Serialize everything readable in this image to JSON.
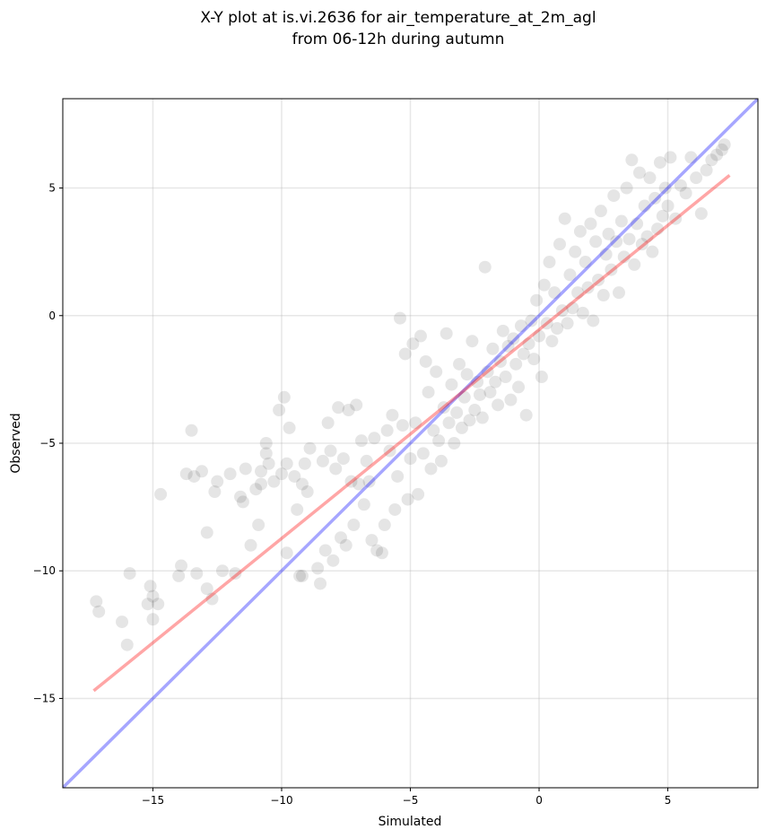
{
  "chart_data": {
    "type": "scatter",
    "title_line1": "X-Y plot at is.vi.2636 for air_temperature_at_2m_agl",
    "title_line2": "from 06-12h during autumn",
    "xlabel": "Simulated",
    "ylabel": "Observed",
    "xlim": [
      -18.5,
      8.5
    ],
    "ylim": [
      -18.5,
      8.5
    ],
    "xticks": [
      -15,
      -10,
      -5,
      0,
      5
    ],
    "yticks": [
      -15,
      -10,
      -5,
      0,
      5
    ],
    "xtick_labels": [
      "−15",
      "−10",
      "−5",
      "0",
      "5"
    ],
    "ytick_labels": [
      "−15",
      "−10",
      "−5",
      "0",
      "5"
    ],
    "grid": true,
    "point_color": "#000000",
    "identity_line": {
      "color": "#0000ff",
      "x": [
        -18.5,
        8.5
      ],
      "y": [
        -18.5,
        8.5
      ]
    },
    "fit_line": {
      "color": "#ff0000",
      "x": [
        -17.3,
        7.4
      ],
      "y": [
        -14.7,
        5.5
      ]
    },
    "points": [
      [
        -17.2,
        -11.2
      ],
      [
        -17.1,
        -11.6
      ],
      [
        -16.2,
        -12.0
      ],
      [
        -16.0,
        -12.9
      ],
      [
        -15.9,
        -10.1
      ],
      [
        -15.2,
        -11.3
      ],
      [
        -15.1,
        -10.6
      ],
      [
        -15.0,
        -11.0
      ],
      [
        -15.0,
        -11.9
      ],
      [
        -14.8,
        -11.3
      ],
      [
        -14.7,
        -7.0
      ],
      [
        -14.0,
        -10.2
      ],
      [
        -13.9,
        -9.8
      ],
      [
        -13.7,
        -6.2
      ],
      [
        -13.5,
        -4.5
      ],
      [
        -13.4,
        -6.3
      ],
      [
        -13.3,
        -10.1
      ],
      [
        -13.1,
        -6.1
      ],
      [
        -12.9,
        -8.5
      ],
      [
        -12.9,
        -10.7
      ],
      [
        -12.7,
        -11.1
      ],
      [
        -12.6,
        -6.9
      ],
      [
        -12.5,
        -6.5
      ],
      [
        -12.3,
        -10.0
      ],
      [
        -12.0,
        -6.2
      ],
      [
        -11.8,
        -10.1
      ],
      [
        -11.6,
        -7.1
      ],
      [
        -11.5,
        -7.3
      ],
      [
        -11.4,
        -6.0
      ],
      [
        -11.2,
        -9.0
      ],
      [
        -11.0,
        -6.8
      ],
      [
        -10.9,
        -8.2
      ],
      [
        -10.8,
        -6.1
      ],
      [
        -10.8,
        -6.6
      ],
      [
        -10.6,
        -5.0
      ],
      [
        -10.6,
        -5.4
      ],
      [
        -10.5,
        -5.8
      ],
      [
        -10.3,
        -6.5
      ],
      [
        -10.1,
        -3.7
      ],
      [
        -10.0,
        -6.2
      ],
      [
        -9.9,
        -3.2
      ],
      [
        -9.8,
        -5.8
      ],
      [
        -9.8,
        -9.3
      ],
      [
        -9.7,
        -4.4
      ],
      [
        -9.5,
        -6.3
      ],
      [
        -9.4,
        -7.6
      ],
      [
        -9.3,
        -10.2
      ],
      [
        -9.2,
        -10.2
      ],
      [
        -9.2,
        -6.6
      ],
      [
        -9.1,
        -5.8
      ],
      [
        -9.0,
        -6.9
      ],
      [
        -8.9,
        -5.2
      ],
      [
        -8.6,
        -9.9
      ],
      [
        -8.5,
        -10.5
      ],
      [
        -8.4,
        -5.7
      ],
      [
        -8.3,
        -9.2
      ],
      [
        -8.2,
        -4.2
      ],
      [
        -8.1,
        -5.3
      ],
      [
        -8.0,
        -9.6
      ],
      [
        -7.9,
        -6.0
      ],
      [
        -7.8,
        -3.6
      ],
      [
        -7.7,
        -8.7
      ],
      [
        -7.6,
        -5.6
      ],
      [
        -7.5,
        -9.0
      ],
      [
        -7.4,
        -3.7
      ],
      [
        -7.3,
        -6.5
      ],
      [
        -7.2,
        -8.2
      ],
      [
        -7.1,
        -3.5
      ],
      [
        -7.0,
        -6.6
      ],
      [
        -6.9,
        -4.9
      ],
      [
        -6.8,
        -7.4
      ],
      [
        -6.7,
        -5.7
      ],
      [
        -6.6,
        -6.5
      ],
      [
        -6.5,
        -8.8
      ],
      [
        -6.4,
        -4.8
      ],
      [
        -6.3,
        -9.2
      ],
      [
        -6.1,
        -9.3
      ],
      [
        -6.0,
        -8.2
      ],
      [
        -5.9,
        -4.5
      ],
      [
        -5.8,
        -5.3
      ],
      [
        -5.7,
        -3.9
      ],
      [
        -5.6,
        -7.6
      ],
      [
        -5.5,
        -6.3
      ],
      [
        -5.4,
        -0.1
      ],
      [
        -5.3,
        -4.3
      ],
      [
        -5.2,
        -1.5
      ],
      [
        -5.1,
        -7.2
      ],
      [
        -5.0,
        -5.6
      ],
      [
        -4.9,
        -1.1
      ],
      [
        -4.8,
        -4.2
      ],
      [
        -4.7,
        -7.0
      ],
      [
        -4.6,
        -0.8
      ],
      [
        -4.5,
        -5.4
      ],
      [
        -4.4,
        -1.8
      ],
      [
        -4.3,
        -3.0
      ],
      [
        -4.2,
        -6.0
      ],
      [
        -4.1,
        -4.5
      ],
      [
        -4.0,
        -2.2
      ],
      [
        -3.9,
        -4.9
      ],
      [
        -3.8,
        -5.7
      ],
      [
        -3.7,
        -3.6
      ],
      [
        -3.6,
        -0.7
      ],
      [
        -3.5,
        -4.2
      ],
      [
        -3.4,
        -2.7
      ],
      [
        -3.3,
        -5.0
      ],
      [
        -3.2,
        -3.8
      ],
      [
        -3.1,
        -1.9
      ],
      [
        -3.0,
        -4.4
      ],
      [
        -2.9,
        -3.2
      ],
      [
        -2.8,
        -2.3
      ],
      [
        -2.7,
        -4.1
      ],
      [
        -2.6,
        -1.0
      ],
      [
        -2.5,
        -3.7
      ],
      [
        -2.4,
        -2.6
      ],
      [
        -2.3,
        -3.1
      ],
      [
        -2.2,
        -4.0
      ],
      [
        -2.1,
        1.9
      ],
      [
        -2.0,
        -2.2
      ],
      [
        -1.9,
        -3.0
      ],
      [
        -1.8,
        -1.3
      ],
      [
        -1.7,
        -2.6
      ],
      [
        -1.6,
        -3.5
      ],
      [
        -1.5,
        -1.8
      ],
      [
        -1.4,
        -0.6
      ],
      [
        -1.3,
        -2.4
      ],
      [
        -1.2,
        -1.2
      ],
      [
        -1.1,
        -3.3
      ],
      [
        -1.0,
        -0.9
      ],
      [
        -0.9,
        -1.9
      ],
      [
        -0.8,
        -2.8
      ],
      [
        -0.7,
        -0.4
      ],
      [
        -0.6,
        -1.5
      ],
      [
        -0.5,
        -3.9
      ],
      [
        -0.4,
        -1.1
      ],
      [
        -0.3,
        -0.2
      ],
      [
        -0.2,
        -1.7
      ],
      [
        -0.1,
        0.6
      ],
      [
        0.0,
        -0.8
      ],
      [
        0.1,
        -2.4
      ],
      [
        0.2,
        1.2
      ],
      [
        0.3,
        -0.3
      ],
      [
        0.4,
        2.1
      ],
      [
        0.5,
        -1.0
      ],
      [
        0.6,
        0.9
      ],
      [
        0.7,
        -0.5
      ],
      [
        0.8,
        2.8
      ],
      [
        0.9,
        0.2
      ],
      [
        1.0,
        3.8
      ],
      [
        1.1,
        -0.3
      ],
      [
        1.2,
        1.6
      ],
      [
        1.3,
        0.3
      ],
      [
        1.4,
        2.5
      ],
      [
        1.5,
        0.9
      ],
      [
        1.6,
        3.3
      ],
      [
        1.7,
        0.1
      ],
      [
        1.8,
        2.1
      ],
      [
        1.9,
        1.1
      ],
      [
        2.0,
        3.6
      ],
      [
        2.1,
        -0.2
      ],
      [
        2.2,
        2.9
      ],
      [
        2.3,
        1.4
      ],
      [
        2.4,
        4.1
      ],
      [
        2.5,
        0.8
      ],
      [
        2.6,
        2.4
      ],
      [
        2.7,
        3.2
      ],
      [
        2.8,
        1.8
      ],
      [
        2.9,
        4.7
      ],
      [
        3.0,
        2.9
      ],
      [
        3.1,
        0.9
      ],
      [
        3.2,
        3.7
      ],
      [
        3.3,
        2.3
      ],
      [
        3.4,
        5.0
      ],
      [
        3.5,
        3.0
      ],
      [
        3.6,
        6.1
      ],
      [
        3.7,
        2.0
      ],
      [
        3.8,
        3.6
      ],
      [
        3.9,
        5.6
      ],
      [
        4.0,
        2.8
      ],
      [
        4.1,
        4.3
      ],
      [
        4.2,
        3.1
      ],
      [
        4.3,
        5.4
      ],
      [
        4.4,
        2.5
      ],
      [
        4.5,
        4.6
      ],
      [
        4.6,
        3.4
      ],
      [
        4.7,
        6.0
      ],
      [
        4.8,
        3.9
      ],
      [
        4.9,
        5.0
      ],
      [
        5.0,
        4.3
      ],
      [
        5.1,
        6.2
      ],
      [
        5.3,
        3.8
      ],
      [
        5.5,
        5.1
      ],
      [
        5.7,
        4.8
      ],
      [
        5.9,
        6.2
      ],
      [
        6.1,
        5.4
      ],
      [
        6.3,
        4.0
      ],
      [
        6.5,
        5.7
      ],
      [
        6.7,
        6.1
      ],
      [
        6.9,
        6.3
      ],
      [
        7.1,
        6.5
      ],
      [
        7.2,
        6.7
      ]
    ]
  }
}
